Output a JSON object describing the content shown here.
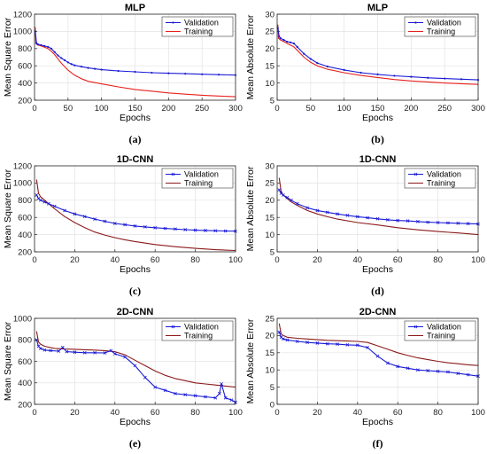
{
  "chart_data": [
    {
      "type": "line",
      "caption": "(a)",
      "title": "MLP",
      "xlabel": "Epochs",
      "ylabel": "Mean Square Error",
      "xlim": [
        0,
        300
      ],
      "ylim": [
        200,
        1200
      ],
      "xticks": [
        0,
        50,
        100,
        150,
        200,
        250,
        300
      ],
      "yticks": [
        200,
        400,
        600,
        800,
        1000,
        1200
      ],
      "grid": true,
      "legend": "top-right",
      "series": [
        {
          "name": "Validation",
          "color": "#1a1ad6",
          "marker": "dot",
          "x": [
            1,
            3,
            5,
            10,
            15,
            20,
            25,
            30,
            35,
            40,
            45,
            50,
            55,
            60,
            70,
            80,
            90,
            100,
            125,
            150,
            175,
            200,
            225,
            250,
            275,
            300
          ],
          "y": [
            1000,
            860,
            850,
            840,
            830,
            820,
            800,
            760,
            720,
            690,
            665,
            640,
            620,
            605,
            590,
            575,
            565,
            555,
            540,
            530,
            520,
            513,
            508,
            502,
            497,
            492
          ]
        },
        {
          "name": "Training",
          "color": "#e8211c",
          "x": [
            1,
            2,
            5,
            10,
            15,
            20,
            25,
            30,
            40,
            50,
            60,
            70,
            80,
            100,
            125,
            150,
            175,
            200,
            225,
            250,
            275,
            300
          ],
          "y": [
            1050,
            860,
            840,
            830,
            815,
            800,
            770,
            730,
            630,
            550,
            490,
            450,
            420,
            390,
            355,
            325,
            305,
            285,
            270,
            258,
            248,
            240
          ]
        }
      ]
    },
    {
      "type": "line",
      "caption": "(b)",
      "title": "MLP",
      "xlabel": "Epochs",
      "ylabel": "Mean Absolute Error",
      "xlim": [
        0,
        300
      ],
      "ylim": [
        5,
        30
      ],
      "xticks": [
        0,
        50,
        100,
        150,
        200,
        250,
        300
      ],
      "yticks": [
        5,
        10,
        15,
        20,
        25,
        30
      ],
      "grid": true,
      "legend": "top-right",
      "series": [
        {
          "name": "Validation",
          "color": "#1a1ad6",
          "marker": "dot",
          "x": [
            1,
            3,
            5,
            10,
            15,
            20,
            25,
            30,
            40,
            50,
            60,
            75,
            100,
            125,
            150,
            175,
            200,
            225,
            250,
            275,
            300
          ],
          "y": [
            26,
            23.5,
            23,
            22.5,
            22,
            21.8,
            21.5,
            20.5,
            18.5,
            17,
            15.8,
            14.8,
            13.8,
            13,
            12.5,
            12.1,
            11.8,
            11.5,
            11.3,
            11.1,
            10.9
          ]
        },
        {
          "name": "Training",
          "color": "#e8211c",
          "x": [
            1,
            2,
            5,
            10,
            15,
            20,
            25,
            30,
            40,
            50,
            60,
            75,
            100,
            125,
            150,
            175,
            200,
            225,
            250,
            275,
            300
          ],
          "y": [
            27,
            23,
            22.5,
            22,
            21.5,
            21,
            20.5,
            19.5,
            17.5,
            16,
            15,
            14,
            13,
            12.2,
            11.6,
            11,
            10.6,
            10.3,
            10,
            9.8,
            9.6
          ]
        }
      ]
    },
    {
      "type": "line",
      "caption": "(c)",
      "title": "1D-CNN",
      "xlabel": "Epochs",
      "ylabel": "Mean Square Error",
      "xlim": [
        0,
        100
      ],
      "ylim": [
        200,
        1200
      ],
      "xticks": [
        0,
        20,
        40,
        60,
        80,
        100
      ],
      "yticks": [
        200,
        400,
        600,
        800,
        1000,
        1200
      ],
      "grid": true,
      "legend": "top-right",
      "series": [
        {
          "name": "Validation",
          "color": "#1a1ad6",
          "marker": "x",
          "x": [
            1,
            2,
            3,
            5,
            7,
            10,
            15,
            20,
            25,
            30,
            35,
            40,
            45,
            50,
            55,
            60,
            65,
            70,
            75,
            80,
            85,
            90,
            95,
            100
          ],
          "y": [
            860,
            820,
            800,
            780,
            760,
            730,
            680,
            640,
            610,
            580,
            555,
            530,
            515,
            500,
            490,
            480,
            472,
            465,
            458,
            452,
            448,
            445,
            442,
            440
          ]
        },
        {
          "name": "Training",
          "color": "#8b1a1a",
          "x": [
            1,
            2,
            3,
            5,
            7,
            10,
            15,
            20,
            25,
            30,
            35,
            40,
            45,
            50,
            60,
            70,
            80,
            90,
            100
          ],
          "y": [
            1040,
            880,
            840,
            800,
            760,
            700,
            610,
            540,
            480,
            430,
            395,
            365,
            340,
            320,
            285,
            260,
            240,
            225,
            215
          ]
        }
      ]
    },
    {
      "type": "line",
      "caption": "(d)",
      "title": "1D-CNN",
      "xlabel": "Epochs",
      "ylabel": "Mean Absolute Error",
      "xlim": [
        0,
        100
      ],
      "ylim": [
        5,
        30
      ],
      "xticks": [
        0,
        20,
        40,
        60,
        80,
        100
      ],
      "yticks": [
        5,
        10,
        15,
        20,
        25,
        30
      ],
      "grid": true,
      "legend": "top-right",
      "series": [
        {
          "name": "Validation",
          "color": "#1a1ad6",
          "marker": "x",
          "x": [
            1,
            2,
            3,
            5,
            7,
            10,
            15,
            20,
            25,
            30,
            35,
            40,
            45,
            50,
            55,
            60,
            65,
            70,
            75,
            80,
            85,
            90,
            95,
            100
          ],
          "y": [
            23,
            22,
            21.5,
            20.8,
            20,
            19,
            17.8,
            17,
            16.5,
            16,
            15.6,
            15.2,
            14.9,
            14.6,
            14.3,
            14.1,
            14,
            13.8,
            13.6,
            13.5,
            13.4,
            13.3,
            13.2,
            13.1
          ]
        },
        {
          "name": "Training",
          "color": "#8b1a1a",
          "x": [
            1,
            2,
            3,
            5,
            7,
            10,
            15,
            20,
            25,
            30,
            40,
            50,
            60,
            70,
            80,
            90,
            100
          ],
          "y": [
            26.5,
            22.5,
            21.5,
            20.5,
            19.5,
            18.5,
            17,
            16,
            15.2,
            14.5,
            13.5,
            12.8,
            12,
            11.4,
            10.9,
            10.5,
            10
          ]
        }
      ]
    },
    {
      "type": "line",
      "caption": "(e)",
      "title": "2D-CNN",
      "xlabel": "Epochs",
      "ylabel": "Mean Square Error",
      "xlim": [
        0,
        100
      ],
      "ylim": [
        200,
        1000
      ],
      "xticks": [
        0,
        20,
        40,
        60,
        80,
        100
      ],
      "yticks": [
        200,
        400,
        600,
        800,
        1000
      ],
      "grid": true,
      "legend": "top-right",
      "series": [
        {
          "name": "Validation",
          "color": "#1a1ad6",
          "marker": "x",
          "x": [
            1,
            2,
            3,
            5,
            8,
            12,
            14,
            16,
            20,
            25,
            30,
            35,
            38,
            40,
            45,
            50,
            55,
            60,
            65,
            70,
            75,
            80,
            85,
            90,
            92,
            93,
            95,
            98,
            100
          ],
          "y": [
            800,
            740,
            720,
            705,
            700,
            695,
            730,
            690,
            685,
            680,
            680,
            678,
            700,
            670,
            640,
            560,
            450,
            360,
            330,
            300,
            290,
            280,
            270,
            260,
            300,
            390,
            260,
            240,
            220
          ]
        },
        {
          "name": "Training",
          "color": "#8b1a1a",
          "x": [
            1,
            2,
            3,
            5,
            10,
            15,
            20,
            25,
            30,
            35,
            40,
            45,
            50,
            55,
            60,
            65,
            70,
            75,
            80,
            85,
            90,
            95,
            100
          ],
          "y": [
            880,
            780,
            760,
            740,
            720,
            715,
            712,
            708,
            705,
            700,
            690,
            660,
            610,
            560,
            510,
            470,
            440,
            420,
            400,
            390,
            380,
            370,
            360
          ]
        }
      ]
    },
    {
      "type": "line",
      "caption": "(f)",
      "title": "2D-CNN",
      "xlabel": "Epochs",
      "ylabel": "Mean Absolute Error",
      "xlim": [
        0,
        100
      ],
      "ylim": [
        0,
        25
      ],
      "xticks": [
        0,
        20,
        40,
        60,
        80,
        100
      ],
      "yticks": [
        0,
        5,
        10,
        15,
        20,
        25
      ],
      "grid": true,
      "legend": "top-right",
      "series": [
        {
          "name": "Validation",
          "color": "#1a1ad6",
          "marker": "x",
          "x": [
            1,
            2,
            3,
            5,
            10,
            15,
            20,
            25,
            30,
            35,
            40,
            45,
            50,
            55,
            60,
            65,
            70,
            75,
            80,
            85,
            90,
            95,
            100
          ],
          "y": [
            21,
            19.5,
            19,
            18.7,
            18.3,
            18,
            17.8,
            17.6,
            17.5,
            17.3,
            17.2,
            16.5,
            14,
            12,
            11,
            10.5,
            10,
            9.8,
            9.6,
            9.4,
            9,
            8.6,
            8.2
          ]
        },
        {
          "name": "Training",
          "color": "#8b1a1a",
          "x": [
            1,
            2,
            3,
            5,
            10,
            15,
            20,
            25,
            30,
            35,
            40,
            45,
            50,
            55,
            60,
            65,
            70,
            75,
            80,
            85,
            90,
            95,
            100
          ],
          "y": [
            23.5,
            20.5,
            20,
            19.5,
            19.2,
            19,
            18.8,
            18.6,
            18.5,
            18.4,
            18.3,
            18,
            17,
            16,
            15,
            14.2,
            13.5,
            13,
            12.5,
            12.1,
            11.8,
            11.5,
            11.3
          ]
        }
      ]
    }
  ]
}
